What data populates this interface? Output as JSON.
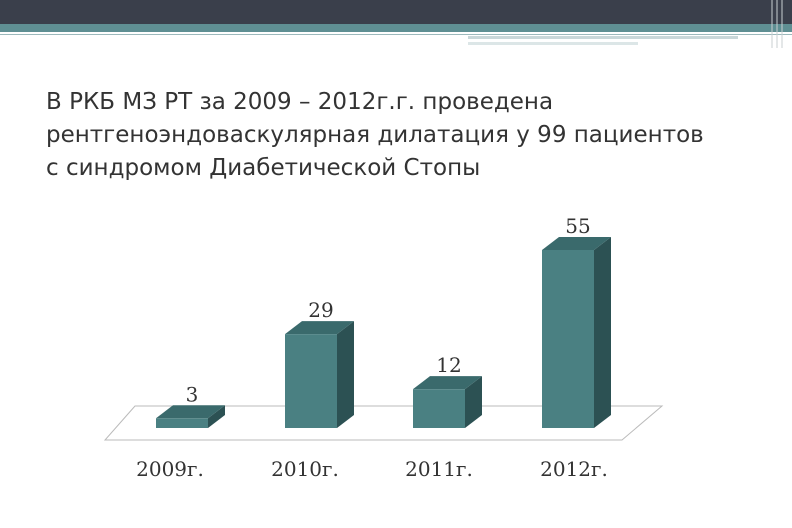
{
  "slide": {
    "title_lines": [
      "В РКБ МЗ РТ за 2009 – 2012г.г. проведена",
      "рентгеноэндоваскулярная дилатация у 99 пациентов",
      "с синдромом Диабетической Стопы"
    ]
  },
  "colors": {
    "bar_front": "#4a8082",
    "bar_top": "#3a6a6c",
    "bar_side": "#2c5153",
    "header_dark": "#3a3f4b",
    "header_teal": "#5f8f93"
  },
  "chart_data": {
    "type": "bar",
    "style": "3d",
    "categories": [
      "2009г.",
      "2010г.",
      "2011г.",
      "2012г."
    ],
    "values": [
      3,
      29,
      12,
      55
    ],
    "data_labels": [
      "3",
      "29",
      "12",
      "55"
    ],
    "title": "",
    "xlabel": "",
    "ylabel": "",
    "ylim": [
      0,
      55
    ],
    "grid": false,
    "legend": "none"
  }
}
